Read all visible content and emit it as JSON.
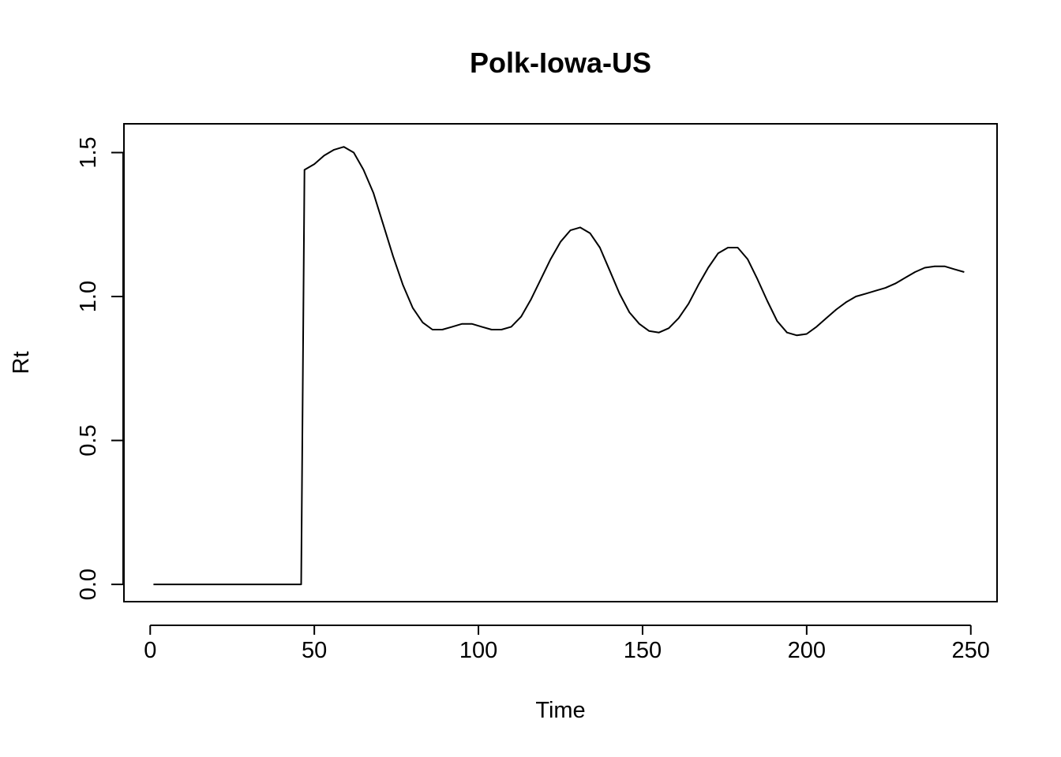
{
  "chart_data": {
    "type": "line",
    "title": "Polk-Iowa-US",
    "xlabel": "Time",
    "ylabel": "Rt",
    "xlim": [
      -8,
      258
    ],
    "ylim": [
      -0.06,
      1.6
    ],
    "x_ticks": [
      0,
      50,
      100,
      150,
      200,
      250
    ],
    "y_ticks": [
      0.0,
      0.5,
      1.0,
      1.5
    ],
    "x_tick_labels": [
      "0",
      "50",
      "100",
      "150",
      "200",
      "250"
    ],
    "y_tick_labels": [
      "0.0",
      "0.5",
      "1.0",
      "1.5"
    ],
    "grid": false,
    "legend": "none",
    "series": [
      {
        "color": "#000000",
        "x": [
          1,
          10,
          20,
          30,
          40,
          46,
          47,
          50,
          53,
          56,
          59,
          62,
          65,
          68,
          71,
          74,
          77,
          80,
          83,
          86,
          89,
          92,
          95,
          98,
          101,
          104,
          107,
          110,
          113,
          116,
          119,
          122,
          125,
          128,
          131,
          134,
          137,
          140,
          143,
          146,
          149,
          152,
          155,
          158,
          161,
          164,
          167,
          170,
          173,
          176,
          179,
          182,
          185,
          188,
          191,
          194,
          197,
          200,
          203,
          206,
          209,
          212,
          215,
          218,
          221,
          224,
          227,
          230,
          233,
          236,
          239,
          242,
          245,
          248
        ],
        "values": [
          0,
          0,
          0,
          0,
          0,
          0,
          1.44,
          1.46,
          1.49,
          1.51,
          1.52,
          1.5,
          1.44,
          1.36,
          1.25,
          1.14,
          1.04,
          0.96,
          0.91,
          0.885,
          0.885,
          0.895,
          0.905,
          0.905,
          0.895,
          0.885,
          0.885,
          0.895,
          0.93,
          0.99,
          1.06,
          1.13,
          1.19,
          1.23,
          1.24,
          1.22,
          1.17,
          1.09,
          1.01,
          0.945,
          0.905,
          0.88,
          0.875,
          0.89,
          0.925,
          0.975,
          1.04,
          1.1,
          1.15,
          1.17,
          1.17,
          1.13,
          1.06,
          0.985,
          0.915,
          0.875,
          0.865,
          0.87,
          0.895,
          0.925,
          0.955,
          0.98,
          1.0,
          1.01,
          1.02,
          1.03,
          1.045,
          1.065,
          1.085,
          1.1,
          1.105,
          1.105,
          1.095,
          1.085
        ]
      }
    ]
  }
}
